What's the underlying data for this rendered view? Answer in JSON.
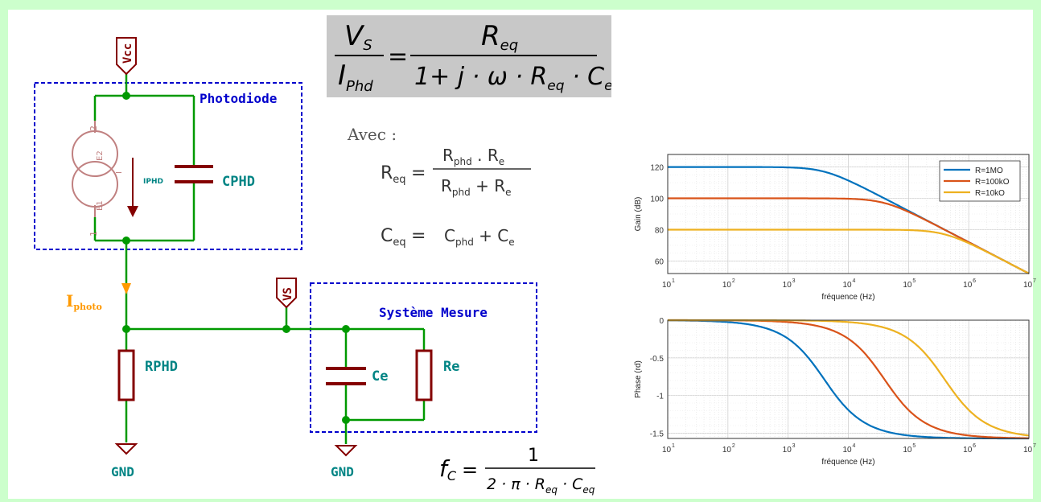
{
  "schematic": {
    "vcc": "Vcc",
    "vs": "VS",
    "photodiode_label": "Photodiode",
    "mesure_label": "Système Mesure",
    "iphd": "IPHD",
    "cphd": "CPHD",
    "rphd": "RPHD",
    "ce": "Ce",
    "re": "Re",
    "gnd1": "GND",
    "gnd2": "GND",
    "iphoto_main": "I",
    "iphoto_sub": "photo",
    "pin_e2": "E2",
    "pin_e1": "E1",
    "pin_2": "2",
    "pin_1": "1",
    "pin_i": "I"
  },
  "equations": {
    "transfer": {
      "lhs_num": "V",
      "lhs_num_sub": "S",
      "lhs_den": "I",
      "lhs_den_sub": "Phd",
      "rhs_num": "R",
      "rhs_num_sub": "eq",
      "rhs_den_a": "1+ j · ω · R",
      "rhs_den_sub1": "eq",
      "rhs_den_b": " · C",
      "rhs_den_sub2": "eq"
    },
    "avec": "Avec :",
    "req": {
      "lhs": "R",
      "lhs_sub": "eq",
      "num": "R",
      "num_sub": "phd",
      "num_mid": " . R",
      "num_sub2": "e",
      "den": "R",
      "den_sub": "phd",
      "den_mid": " + R",
      "den_sub2": "e"
    },
    "ceq": {
      "lhs": "C",
      "lhs_sub": "eq",
      "rhs_a": "C",
      "rhs_sub1": "phd",
      "rhs_b": " + C",
      "rhs_sub2": "e"
    },
    "fc": {
      "lhs": "f",
      "lhs_sub": "C",
      "num": "1",
      "den_a": "2 · π · R",
      "den_sub1": "eq",
      "den_b": " · C",
      "den_sub2": "eq"
    }
  },
  "colors": {
    "wire": "#009900",
    "component": "#840000",
    "label": "#008484",
    "box": "#0000cc",
    "iphoto": "#ff9900",
    "s1": "#0072bd",
    "s2": "#d95319",
    "s3": "#edb120"
  },
  "chart_data": [
    {
      "type": "line",
      "title": "",
      "xlabel": "fréquence (Hz)",
      "ylabel": "Gain (dB)",
      "x_scale": "log",
      "xlim": [
        10,
        10000000
      ],
      "ylim": [
        52,
        128
      ],
      "yticks": [
        60,
        80,
        100,
        120
      ],
      "xticks": [
        "10",
        "10",
        "10",
        "10",
        "10",
        "10",
        "10"
      ],
      "xtick_exp": [
        "1",
        "2",
        "3",
        "4",
        "5",
        "6",
        "7"
      ],
      "grid": true,
      "legend_position": "top-right",
      "series": [
        {
          "name": "R=1MO",
          "R": 1000000,
          "fc": 3981,
          "x": [
            10,
            100,
            1000,
            3981,
            10000,
            100000,
            1000000,
            10000000
          ],
          "values": [
            120,
            120,
            119.7,
            117,
            112.6,
            93.2,
            73.1,
            54.0
          ]
        },
        {
          "name": "R=100kO",
          "R": 100000,
          "fc": 39810,
          "x": [
            10,
            100,
            1000,
            10000,
            39810,
            100000,
            1000000,
            10000000
          ],
          "values": [
            100,
            100,
            100,
            99.7,
            97,
            92.6,
            73.2,
            54.0
          ]
        },
        {
          "name": "R=10kO",
          "R": 10000,
          "fc": 398100,
          "x": [
            10,
            100,
            1000,
            10000,
            100000,
            398100,
            1000000,
            10000000
          ],
          "values": [
            80,
            80,
            80,
            80,
            79.7,
            77,
            72.6,
            54.0
          ]
        }
      ]
    },
    {
      "type": "line",
      "title": "",
      "xlabel": "fréquence (Hz)",
      "ylabel": "Phase (rd)",
      "x_scale": "log",
      "xlim": [
        10,
        10000000
      ],
      "ylim": [
        -1.57,
        0
      ],
      "yticks": [
        "0",
        "-0.5",
        "-1",
        "-1.5"
      ],
      "ytick_values": [
        0,
        -0.5,
        -1,
        -1.5
      ],
      "xticks": [
        "10",
        "10",
        "10",
        "10",
        "10",
        "10",
        "10"
      ],
      "xtick_exp": [
        "1",
        "2",
        "3",
        "4",
        "5",
        "6",
        "7"
      ],
      "grid": true,
      "series": [
        {
          "name": "R=1MO",
          "fc": 3981,
          "x": [
            10,
            100,
            1000,
            3981,
            10000,
            100000,
            1000000,
            10000000
          ],
          "values": [
            0,
            -0.03,
            -0.25,
            -0.785,
            -1.19,
            -1.53,
            -1.567,
            -1.57
          ]
        },
        {
          "name": "R=100kO",
          "fc": 39810,
          "x": [
            10,
            100,
            1000,
            10000,
            39810,
            100000,
            1000000,
            10000000
          ],
          "values": [
            0,
            0,
            -0.03,
            -0.25,
            -0.785,
            -1.19,
            -1.53,
            -1.567
          ]
        },
        {
          "name": "R=10kO",
          "fc": 398100,
          "x": [
            10,
            100,
            1000,
            10000,
            100000,
            398100,
            1000000,
            10000000
          ],
          "values": [
            0,
            0,
            0,
            -0.03,
            -0.25,
            -0.785,
            -1.19,
            -1.53
          ]
        }
      ]
    }
  ]
}
